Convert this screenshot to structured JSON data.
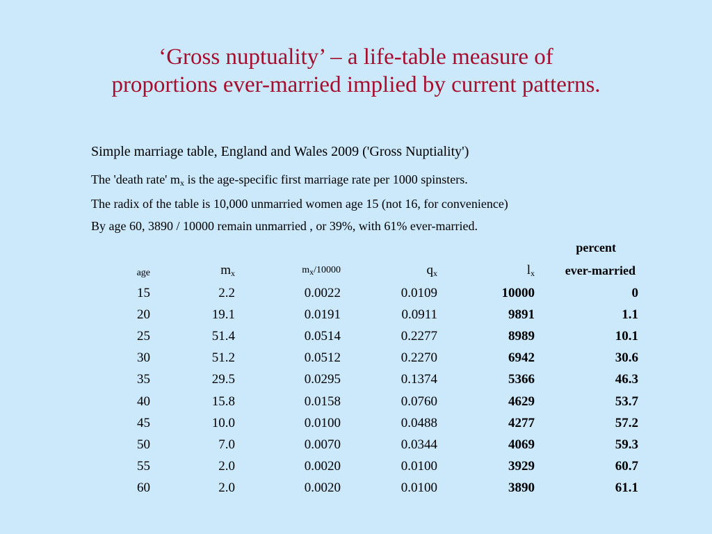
{
  "title": {
    "line1": "‘Gross nuptuality’ – a life-table measure of",
    "line2": "proportions ever-married implied by current patterns."
  },
  "caption": {
    "heading": "Simple marriage table, England and Wales 2009 ('Gross Nuptiality')",
    "note1_pre": "The 'death rate' m",
    "note1_sub": "x",
    "note1_post": " is the age-specific first marriage rate per 1000 spinsters.",
    "note2": "The radix of the table is 10,000 unmarried women age 15 (not 16,  for convenience)",
    "note3": "By age 60, 3890 / 10000 remain unmarried , or 39%, with 61% ever-married."
  },
  "table": {
    "headers": {
      "age": "age",
      "mx_base": "m",
      "mx_sub": "x",
      "mxr_base": "m",
      "mxr_sub": "x",
      "mxr_post": "/10000",
      "qx_base": "q",
      "qx_sub": "x",
      "lx_base": "l",
      "lx_sub": "x",
      "pct_line1": "percent",
      "pct_line2": "ever-married"
    },
    "rows": [
      {
        "age": "15",
        "mx": "2.2",
        "mxr": "0.0022",
        "qx": "0.0109",
        "lx": "10000",
        "pct": "0"
      },
      {
        "age": "20",
        "mx": "19.1",
        "mxr": "0.0191",
        "qx": "0.0911",
        "lx": "9891",
        "pct": "1.1"
      },
      {
        "age": "25",
        "mx": "51.4",
        "mxr": "0.0514",
        "qx": "0.2277",
        "lx": "8989",
        "pct": "10.1"
      },
      {
        "age": "30",
        "mx": "51.2",
        "mxr": "0.0512",
        "qx": "0.2270",
        "lx": "6942",
        "pct": "30.6"
      },
      {
        "age": "35",
        "mx": "29.5",
        "mxr": "0.0295",
        "qx": "0.1374",
        "lx": "5366",
        "pct": "46.3"
      },
      {
        "age": "40",
        "mx": "15.8",
        "mxr": "0.0158",
        "qx": "0.0760",
        "lx": "4629",
        "pct": "53.7"
      },
      {
        "age": "45",
        "mx": "10.0",
        "mxr": "0.0100",
        "qx": "0.0488",
        "lx": "4277",
        "pct": "57.2"
      },
      {
        "age": "50",
        "mx": "7.0",
        "mxr": "0.0070",
        "qx": "0.0344",
        "lx": "4069",
        "pct": "59.3"
      },
      {
        "age": "55",
        "mx": "2.0",
        "mxr": "0.0020",
        "qx": "0.0100",
        "lx": "3929",
        "pct": "60.7"
      },
      {
        "age": "60",
        "mx": "2.0",
        "mxr": "0.0020",
        "qx": "0.0100",
        "lx": "3890",
        "pct": "61.1"
      }
    ]
  },
  "colors": {
    "background": "#cce8fb",
    "title": "#a50f2d"
  }
}
